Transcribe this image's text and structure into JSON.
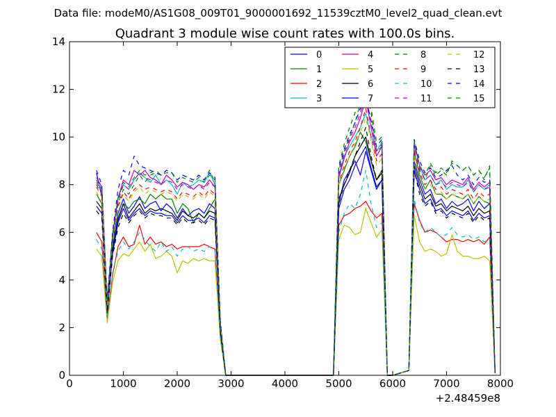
{
  "header": "Data file: modeM0/AS1G08_009T01_9000001692_11539cztM0_level2_quad_clean.evt",
  "chart_data": {
    "type": "line",
    "title": "Quadrant 3 module wise count rates with 100.0s bins.",
    "xlabel": "",
    "ylabel": "",
    "x_offset_label": "+2.48459e8",
    "xlim": [
      0,
      8000
    ],
    "ylim": [
      0,
      14
    ],
    "x_ticks": [
      0,
      1000,
      2000,
      3000,
      4000,
      5000,
      6000,
      7000,
      8000
    ],
    "y_ticks": [
      0,
      2,
      4,
      6,
      8,
      10,
      12,
      14
    ],
    "grid": false,
    "legend_position": "top-right",
    "x": [
      500,
      600,
      700,
      800,
      900,
      1000,
      1100,
      1200,
      1300,
      1400,
      1500,
      1600,
      1700,
      1800,
      1900,
      2000,
      2100,
      2200,
      2300,
      2400,
      2500,
      2600,
      2700,
      2800,
      2900,
      3000,
      4900,
      5000,
      5100,
      5200,
      5300,
      5400,
      5500,
      5600,
      5700,
      5800,
      5900,
      6000,
      6300,
      6400,
      6500,
      6600,
      6700,
      6800,
      6900,
      7000,
      7100,
      7200,
      7300,
      7400,
      7500,
      7600,
      7700,
      7800,
      7900
    ],
    "series": [
      {
        "name": "0",
        "color": "#0000ff",
        "dash": "solid",
        "values": [
          8.5,
          7.5,
          3.0,
          5.6,
          6.8,
          7.4,
          6.8,
          7.1,
          7.5,
          7.0,
          7.2,
          7.3,
          6.9,
          7.2,
          7.0,
          6.6,
          7.0,
          6.7,
          6.9,
          7.0,
          6.8,
          7.2,
          7.0,
          2.0,
          0.0,
          0.0,
          0.0,
          7.2,
          8.2,
          8.6,
          9.0,
          8.4,
          9.4,
          8.6,
          7.8,
          8.2,
          0.0,
          0.0,
          0.2,
          9.0,
          8.2,
          7.6,
          7.8,
          7.2,
          7.4,
          7.0,
          7.3,
          7.1,
          7.2,
          7.4,
          6.9,
          7.3,
          7.0,
          7.2,
          0.1
        ]
      },
      {
        "name": "1",
        "color": "#008000",
        "dash": "solid",
        "values": [
          7.6,
          7.2,
          2.9,
          5.4,
          6.6,
          7.2,
          7.0,
          7.3,
          7.4,
          7.2,
          7.6,
          7.4,
          7.6,
          7.4,
          7.4,
          6.8,
          7.2,
          7.0,
          6.4,
          6.8,
          6.6,
          7.0,
          7.4,
          2.0,
          0.0,
          0.0,
          0.0,
          8.0,
          8.6,
          9.2,
          9.6,
          10.2,
          9.8,
          9.0,
          8.2,
          8.6,
          0.0,
          0.0,
          0.2,
          9.4,
          8.4,
          7.8,
          8.2,
          7.6,
          7.6,
          7.4,
          7.6,
          7.5,
          7.4,
          7.6,
          7.2,
          7.5,
          7.3,
          7.2,
          0.1
        ]
      },
      {
        "name": "2",
        "color": "#ff0000",
        "dash": "solid",
        "values": [
          6.0,
          5.6,
          2.4,
          4.2,
          5.4,
          5.8,
          5.4,
          5.5,
          6.3,
          5.5,
          5.8,
          5.5,
          5.6,
          5.4,
          5.5,
          5.3,
          5.4,
          5.4,
          5.4,
          5.4,
          5.5,
          5.4,
          5.3,
          1.6,
          0.0,
          0.0,
          0.0,
          6.3,
          6.7,
          6.8,
          7.0,
          7.1,
          7.3,
          6.9,
          6.6,
          6.8,
          0.0,
          0.0,
          0.2,
          7.2,
          6.5,
          6.0,
          6.1,
          6.0,
          5.8,
          5.6,
          5.7,
          5.7,
          5.6,
          5.7,
          5.6,
          5.7,
          5.5,
          5.8,
          0.1
        ]
      },
      {
        "name": "3",
        "color": "#00bfbf",
        "dash": "solid",
        "values": [
          8.2,
          7.8,
          3.0,
          5.9,
          7.5,
          8.0,
          7.8,
          8.2,
          8.5,
          8.3,
          8.1,
          8.4,
          8.0,
          8.2,
          8.0,
          7.6,
          8.1,
          7.9,
          8.0,
          8.2,
          8.1,
          8.5,
          8.0,
          2.2,
          0.0,
          0.0,
          0.0,
          8.4,
          9.2,
          9.6,
          10.0,
          10.4,
          11.0,
          10.0,
          9.4,
          9.8,
          0.0,
          0.0,
          0.2,
          9.8,
          8.8,
          8.2,
          8.4,
          8.0,
          8.2,
          7.8,
          8.0,
          7.9,
          7.9,
          8.2,
          7.7,
          8.0,
          7.8,
          8.0,
          0.1
        ]
      },
      {
        "name": "4",
        "color": "#bf00bf",
        "dash": "solid",
        "values": [
          8.3,
          7.9,
          3.1,
          5.9,
          7.4,
          8.2,
          8.0,
          8.6,
          8.4,
          8.6,
          8.3,
          8.2,
          8.0,
          8.4,
          8.2,
          7.9,
          8.1,
          8.0,
          7.8,
          8.0,
          7.9,
          8.2,
          7.9,
          2.2,
          0.0,
          0.0,
          0.0,
          8.3,
          9.1,
          9.8,
          10.2,
          10.8,
          11.6,
          10.4,
          9.2,
          9.6,
          0.0,
          0.0,
          0.2,
          9.7,
          8.8,
          8.4,
          8.6,
          8.2,
          8.3,
          8.0,
          8.2,
          8.1,
          8.0,
          8.3,
          7.8,
          8.1,
          7.9,
          8.1,
          0.1
        ]
      },
      {
        "name": "5",
        "color": "#bfbf00",
        "dash": "solid",
        "values": [
          5.3,
          5.0,
          2.2,
          3.9,
          4.8,
          5.1,
          5.0,
          5.3,
          5.6,
          5.2,
          5.5,
          4.9,
          5.0,
          5.2,
          5.0,
          4.3,
          4.8,
          4.7,
          4.9,
          4.8,
          4.9,
          4.8,
          4.8,
          1.5,
          0.0,
          0.0,
          0.0,
          5.7,
          6.3,
          6.2,
          5.9,
          6.0,
          7.0,
          6.4,
          5.8,
          6.1,
          0.0,
          0.0,
          0.2,
          6.7,
          5.6,
          5.2,
          5.3,
          5.2,
          5.0,
          5.1,
          5.9,
          5.2,
          5.0,
          5.0,
          4.9,
          4.9,
          5.0,
          4.8,
          0.1
        ]
      },
      {
        "name": "6",
        "color": "#000000",
        "dash": "solid",
        "values": [
          7.3,
          7.0,
          2.8,
          5.3,
          6.5,
          7.2,
          6.6,
          6.9,
          7.2,
          6.8,
          7.0,
          6.9,
          7.0,
          6.9,
          6.8,
          6.5,
          6.9,
          6.7,
          6.6,
          6.8,
          6.6,
          6.9,
          6.8,
          1.9,
          0.0,
          0.0,
          0.0,
          7.4,
          8.0,
          8.5,
          9.2,
          9.6,
          10.0,
          9.0,
          8.2,
          8.5,
          0.0,
          0.0,
          0.2,
          8.8,
          8.0,
          7.4,
          7.6,
          7.1,
          7.2,
          6.9,
          7.1,
          7.0,
          6.9,
          7.1,
          6.7,
          7.0,
          6.8,
          6.9,
          0.1
        ]
      },
      {
        "name": "7",
        "color": "#0000ff",
        "dash": "solid",
        "values": [
          7.1,
          6.8,
          2.7,
          5.1,
          6.4,
          7.0,
          6.5,
          6.8,
          7.0,
          6.7,
          6.9,
          6.8,
          6.8,
          6.7,
          6.7,
          6.4,
          6.7,
          6.5,
          6.5,
          6.6,
          6.4,
          6.7,
          6.6,
          1.9,
          0.0,
          0.0,
          0.0,
          7.0,
          7.8,
          8.2,
          8.8,
          9.2,
          9.6,
          8.7,
          7.9,
          8.2,
          0.0,
          0.0,
          0.2,
          8.6,
          7.8,
          7.2,
          7.4,
          6.9,
          7.0,
          6.7,
          6.9,
          6.8,
          6.7,
          6.9,
          6.5,
          6.8,
          6.6,
          6.7,
          0.1
        ]
      },
      {
        "name": "8",
        "color": "#008000",
        "dash": "dashed",
        "values": [
          8.0,
          7.6,
          3.0,
          5.8,
          7.2,
          7.8,
          7.6,
          8.0,
          8.4,
          8.1,
          8.4,
          8.5,
          8.4,
          8.6,
          8.5,
          8.2,
          8.4,
          8.3,
          8.2,
          8.4,
          8.2,
          8.6,
          8.1,
          2.2,
          0.0,
          0.0,
          0.0,
          8.6,
          9.4,
          10.0,
          10.6,
          11.4,
          12.4,
          11.0,
          9.4,
          9.6,
          0.0,
          0.0,
          0.2,
          9.4,
          8.6,
          8.2,
          8.8,
          8.4,
          8.6,
          8.4,
          9.0,
          8.8,
          8.6,
          8.8,
          8.4,
          8.6,
          8.2,
          8.8,
          0.1
        ]
      },
      {
        "name": "9",
        "color": "#ff0000",
        "dash": "dashed",
        "values": [
          7.9,
          7.5,
          3.0,
          5.7,
          7.1,
          7.7,
          7.4,
          7.8,
          8.0,
          7.8,
          7.9,
          7.8,
          7.7,
          7.8,
          7.7,
          7.4,
          7.7,
          7.6,
          7.5,
          7.7,
          7.5,
          7.8,
          7.6,
          2.1,
          0.0,
          0.0,
          0.0,
          8.1,
          8.8,
          9.4,
          9.8,
          10.4,
          11.2,
          10.0,
          9.0,
          9.3,
          0.0,
          0.0,
          0.2,
          9.4,
          8.5,
          8.0,
          8.2,
          7.8,
          7.9,
          7.6,
          7.8,
          7.7,
          7.6,
          7.8,
          7.4,
          7.7,
          7.5,
          7.6,
          0.1
        ]
      },
      {
        "name": "10",
        "color": "#00bfbf",
        "dash": "dashed",
        "values": [
          5.7,
          5.3,
          2.4,
          4.3,
          5.2,
          5.6,
          5.3,
          5.6,
          6.0,
          5.7,
          5.4,
          5.2,
          5.6,
          5.2,
          5.4,
          5.0,
          5.3,
          5.4,
          5.2,
          5.3,
          5.2,
          5.4,
          5.2,
          1.6,
          0.0,
          0.0,
          0.0,
          6.0,
          6.8,
          7.2,
          7.0,
          7.6,
          8.6,
          7.2,
          6.2,
          6.4,
          0.0,
          0.0,
          0.2,
          7.4,
          6.4,
          6.0,
          6.2,
          6.0,
          5.8,
          5.9,
          6.2,
          5.9,
          5.8,
          5.9,
          5.7,
          5.8,
          5.6,
          5.7,
          0.1
        ]
      },
      {
        "name": "11",
        "color": "#bf00bf",
        "dash": "dashed",
        "values": [
          8.1,
          7.7,
          3.1,
          5.8,
          7.3,
          8.0,
          7.8,
          8.2,
          8.5,
          8.3,
          8.2,
          8.1,
          8.0,
          8.2,
          8.1,
          7.8,
          8.0,
          7.9,
          7.8,
          8.0,
          7.8,
          8.1,
          7.9,
          2.2,
          0.0,
          0.0,
          0.0,
          8.4,
          9.3,
          9.9,
          10.4,
          11.0,
          11.8,
          10.6,
          9.4,
          9.7,
          0.0,
          0.0,
          0.2,
          9.6,
          8.7,
          8.2,
          8.4,
          8.0,
          8.1,
          7.9,
          8.1,
          8.0,
          7.9,
          8.1,
          7.7,
          8.0,
          7.8,
          7.9,
          0.1
        ]
      },
      {
        "name": "12",
        "color": "#bfbf00",
        "dash": "dashed",
        "values": [
          7.7,
          7.3,
          2.9,
          5.6,
          7.0,
          7.6,
          7.3,
          7.7,
          7.9,
          7.6,
          7.8,
          7.7,
          7.6,
          7.7,
          7.6,
          7.3,
          7.6,
          7.5,
          7.4,
          7.6,
          7.4,
          7.7,
          7.5,
          2.1,
          0.0,
          0.0,
          0.0,
          8.0,
          8.7,
          9.2,
          9.7,
          10.2,
          10.8,
          9.8,
          8.8,
          9.1,
          0.0,
          0.0,
          0.2,
          9.2,
          8.3,
          7.8,
          8.0,
          7.6,
          7.7,
          7.4,
          7.6,
          7.5,
          7.4,
          7.6,
          7.2,
          7.5,
          7.3,
          7.4,
          0.1
        ]
      },
      {
        "name": "13",
        "color": "#000000",
        "dash": "dashed",
        "values": [
          6.9,
          6.6,
          2.6,
          5.0,
          6.2,
          6.8,
          6.4,
          6.7,
          6.9,
          6.6,
          6.8,
          6.7,
          6.7,
          6.6,
          6.6,
          6.3,
          6.6,
          6.4,
          6.4,
          6.5,
          6.3,
          6.6,
          6.5,
          1.8,
          0.0,
          0.0,
          0.0,
          7.2,
          8.0,
          8.6,
          9.2,
          9.8,
          10.4,
          9.2,
          8.2,
          8.6,
          0.0,
          0.0,
          0.2,
          8.6,
          7.6,
          7.1,
          7.3,
          6.8,
          6.9,
          6.6,
          6.8,
          6.7,
          6.6,
          6.8,
          6.4,
          6.7,
          6.5,
          6.6,
          0.1
        ]
      },
      {
        "name": "14",
        "color": "#0000ff",
        "dash": "dashed",
        "values": [
          8.6,
          8.0,
          3.2,
          6.0,
          7.8,
          8.6,
          8.4,
          9.2,
          8.8,
          8.7,
          8.6,
          8.5,
          8.4,
          8.6,
          8.5,
          8.2,
          8.4,
          8.3,
          8.2,
          8.4,
          8.2,
          8.5,
          8.3,
          2.3,
          0.0,
          0.0,
          0.0,
          8.7,
          9.5,
          10.1,
          10.6,
          11.2,
          11.6,
          10.7,
          9.6,
          9.9,
          0.0,
          0.0,
          0.2,
          9.9,
          9.0,
          8.5,
          8.7,
          8.3,
          8.4,
          8.6,
          8.8,
          8.4,
          8.2,
          8.4,
          8.0,
          8.3,
          8.1,
          8.2,
          0.1
        ]
      },
      {
        "name": "15",
        "color": "#008000",
        "dash": "dashed",
        "values": [
          8.2,
          7.8,
          3.1,
          5.9,
          7.4,
          8.1,
          7.9,
          8.3,
          8.6,
          8.4,
          8.5,
          8.6,
          8.4,
          8.5,
          8.5,
          8.1,
          8.3,
          8.2,
          8.1,
          8.3,
          8.1,
          8.4,
          8.2,
          2.2,
          0.0,
          0.0,
          0.0,
          8.8,
          9.7,
          10.4,
          11.0,
          11.8,
          12.5,
          11.2,
          9.8,
          10.0,
          0.0,
          0.0,
          0.2,
          9.8,
          8.8,
          8.4,
          8.9,
          8.5,
          8.7,
          8.5,
          8.9,
          8.8,
          8.6,
          8.8,
          8.4,
          8.6,
          8.3,
          8.7,
          0.1
        ]
      }
    ]
  }
}
